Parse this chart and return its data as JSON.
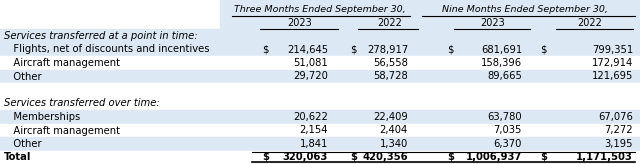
{
  "header1": "Three Months Ended September 30,",
  "header2": "Nine Months Ended September 30,",
  "section1_label": "Services transferred at a point in time:",
  "section2_label": "Services transferred over time:",
  "rows": [
    {
      "label": "   Flights, net of discounts and incentives",
      "dollar1": true,
      "v1": "214,645",
      "dollar2": true,
      "v2": "278,917",
      "dollar3": true,
      "v3": "681,691",
      "dollar4": true,
      "v4": "799,351",
      "shaded": true
    },
    {
      "label": "   Aircraft management",
      "dollar1": false,
      "v1": "51,081",
      "dollar2": false,
      "v2": "56,558",
      "dollar3": false,
      "v3": "158,396",
      "dollar4": false,
      "v4": "172,914",
      "shaded": false
    },
    {
      "label": "   Other",
      "dollar1": false,
      "v1": "29,720",
      "dollar2": false,
      "v2": "58,728",
      "dollar3": false,
      "v3": "89,665",
      "dollar4": false,
      "v4": "121,695",
      "shaded": true
    },
    {
      "label": "",
      "dollar1": false,
      "v1": "",
      "dollar2": false,
      "v2": "",
      "dollar3": false,
      "v3": "",
      "dollar4": false,
      "v4": "",
      "shaded": false
    },
    {
      "label": "   Memberships",
      "dollar1": false,
      "v1": "20,622",
      "dollar2": false,
      "v2": "22,409",
      "dollar3": false,
      "v3": "63,780",
      "dollar4": false,
      "v4": "67,076",
      "shaded": true
    },
    {
      "label": "   Aircraft management",
      "dollar1": false,
      "v1": "2,154",
      "dollar2": false,
      "v2": "2,404",
      "dollar3": false,
      "v3": "7,035",
      "dollar4": false,
      "v4": "7,272",
      "shaded": false
    },
    {
      "label": "   Other",
      "dollar1": false,
      "v1": "1,841",
      "dollar2": false,
      "v2": "1,340",
      "dollar3": false,
      "v3": "6,370",
      "dollar4": false,
      "v4": "3,195",
      "shaded": true
    },
    {
      "label": "Total",
      "dollar1": true,
      "v1": "320,063",
      "dollar2": true,
      "v2": "420,356",
      "dollar3": true,
      "v3": "1,006,937",
      "dollar4": true,
      "v4": "1,171,503",
      "shaded": false,
      "total": true
    }
  ],
  "row_shade": "#dce9f5",
  "row_white": "#ffffff",
  "text_color": "#000000",
  "font_size": 7.2,
  "header_font_size": 6.8
}
